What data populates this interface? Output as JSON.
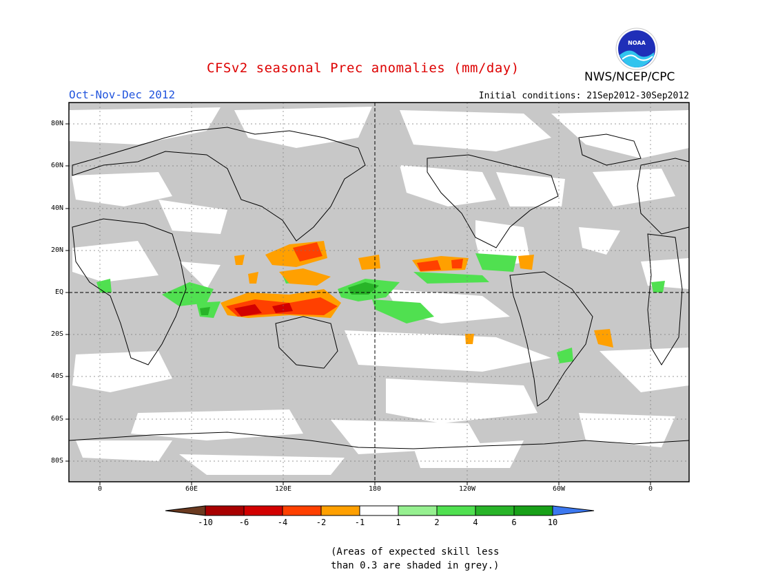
{
  "title": "CFSv2 seasonal Prec anomalies (mm/day)",
  "season": "Oct-Nov-Dec 2012",
  "initial_conditions": "Initial conditions: 21Sep2012-30Sep2012",
  "agency": "NWS/NCEP/CPC",
  "logo_text": "NOAA",
  "lat_labels": [
    "80N",
    "60N",
    "40N",
    "20N",
    "EQ",
    "20S",
    "40S",
    "60S",
    "80S"
  ],
  "lon_labels": [
    "0",
    "60E",
    "120E",
    "180",
    "120W",
    "60W",
    "0"
  ],
  "colorbar": {
    "labels": [
      "-10",
      "-6",
      "-4",
      "-2",
      "-1",
      "1",
      "2",
      "4",
      "6",
      "10"
    ],
    "colors": [
      "#6b3a20",
      "#a80000",
      "#d20000",
      "#ff4000",
      "#ffa000",
      "#ffffff",
      "#96f090",
      "#50e050",
      "#28b428",
      "#18a018",
      "#3c78f0"
    ]
  },
  "note_lines": [
    "(Areas of expected skill less",
    "than 0.3 are shaded in grey.)"
  ]
}
